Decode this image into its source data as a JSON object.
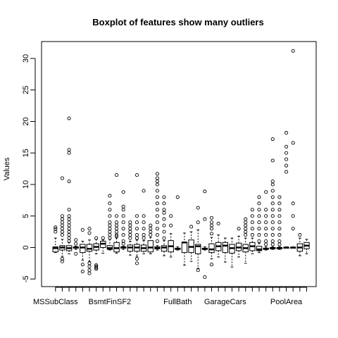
{
  "chart_data": {
    "type": "boxplot",
    "title": "Boxplot of features show many outliers",
    "xlabel": "",
    "ylabel": "Values",
    "ylim": [
      -6,
      33
    ],
    "yticks": [
      -5,
      0,
      5,
      10,
      15,
      20,
      25,
      30
    ],
    "shown_x_labels": [
      "MSSubClass",
      "BsmtFinSF2",
      "FullBath",
      "GarageCars",
      "PoolArea"
    ],
    "grid": false,
    "legend": "none",
    "series": [
      {
        "name": "MSSubClass",
        "values": {
          "min": -0.8,
          "q1": -0.7,
          "median": -0.1,
          "q3": 0.1,
          "max": 1.5,
          "outliers": [
            2.5,
            2.9,
            3.2
          ]
        }
      },
      {
        "values": {
          "min": -1.4,
          "q1": -0.4,
          "median": 0.0,
          "q3": 0.3,
          "max": 1.3,
          "outliers": [
            -1.8,
            -2.2,
            2.0,
            2.5,
            3.0,
            3.5,
            4.0,
            4.5,
            5.0,
            11.0
          ]
        }
      },
      {
        "values": {
          "min": -1.0,
          "q1": -0.5,
          "median": -0.1,
          "q3": 0.3,
          "max": 0.8,
          "outliers": [
            1.0,
            1.5,
            2.0,
            2.5,
            3.0,
            3.5,
            4.0,
            4.5,
            5.0,
            6.0,
            10.5,
            15.0,
            15.5,
            20.5
          ]
        }
      },
      {
        "values": {
          "min": -0.3,
          "q1": -0.1,
          "median": 0.0,
          "q3": 0.1,
          "max": 0.2,
          "outliers": [
            -1.0,
            0.6,
            1.2
          ]
        }
      },
      {
        "values": {
          "min": -2.0,
          "q1": -0.8,
          "median": 0.0,
          "q3": 0.5,
          "max": 1.0,
          "outliers": [
            -2.7,
            -3.8,
            2.8
          ]
        }
      },
      {
        "values": {
          "min": -2.2,
          "q1": -0.6,
          "median": -0.2,
          "q3": 0.5,
          "max": 1.2,
          "outliers": [
            -2.5,
            -3.0,
            -3.6,
            -4.1,
            2.3,
            3.0
          ]
        }
      },
      {
        "values": {
          "min": -1.0,
          "q1": -0.4,
          "median": 0.1,
          "q3": 0.6,
          "max": 1.3,
          "outliers": [
            -2.8,
            -3.0,
            -3.2,
            -3.4,
            1.5
          ]
        }
      },
      {
        "values": {
          "min": -0.9,
          "q1": 0.0,
          "median": 0.6,
          "q3": 1.0,
          "max": 1.2,
          "outliers": [
            1.5
          ]
        }
      },
      {
        "name": "BsmtFinSF2",
        "values": {
          "min": -0.4,
          "q1": -0.3,
          "median": -0.1,
          "q3": 0.3,
          "max": 1.3,
          "outliers": [
            1.5,
            2.0,
            2.5,
            3.0,
            3.5,
            4.0,
            5.0,
            6.0,
            7.0,
            8.2
          ]
        }
      },
      {
        "values": {
          "min": -0.9,
          "q1": -0.7,
          "median": -0.1,
          "q3": 0.8,
          "max": 1.5,
          "outliers": [
            1.8,
            2.0,
            2.5,
            3.0,
            3.5,
            4.0,
            5.0,
            11.5
          ]
        }
      },
      {
        "values": {
          "min": -0.3,
          "q1": -0.1,
          "median": 0.0,
          "q3": 0.1,
          "max": 0.2,
          "outliers": [
            0.6,
            1.0,
            2.0,
            3.0,
            4.0,
            5.0,
            6.0,
            6.5,
            8.8
          ]
        }
      },
      {
        "values": {
          "min": -1.2,
          "q1": -0.6,
          "median": 0.0,
          "q3": 0.4,
          "max": 1.0,
          "outliers": [
            1.5,
            2.0,
            2.5,
            3.0,
            3.5,
            4.0
          ]
        }
      },
      {
        "values": {
          "min": -1.4,
          "q1": -0.6,
          "median": 0.0,
          "q3": 0.5,
          "max": 1.2,
          "outliers": [
            -1.8,
            -2.5,
            1.5,
            2.0,
            3.0,
            4.0,
            5.0,
            11.5
          ]
        }
      },
      {
        "values": {
          "min": -1.0,
          "q1": -0.6,
          "median": -0.1,
          "q3": 0.4,
          "max": 1.1,
          "outliers": [
            1.5,
            2.0,
            3.0,
            4.0,
            5.0,
            9.0
          ]
        }
      },
      {
        "values": {
          "min": -1.0,
          "q1": -0.7,
          "median": 0.0,
          "q3": 1.1,
          "max": 1.6,
          "outliers": [
            2.0,
            2.5,
            3.0,
            3.5
          ]
        }
      },
      {
        "values": {
          "min": -0.4,
          "q1": -0.2,
          "median": -0.1,
          "q3": 0.1,
          "max": 0.3,
          "outliers": [
            1.0,
            2.0,
            3.0,
            4.0,
            5.0,
            6.0,
            7.0,
            8.0,
            9.0,
            10.0,
            10.5,
            11.0,
            11.7
          ]
        }
      },
      {
        "values": {
          "min": -1.3,
          "q1": -0.6,
          "median": 0.0,
          "q3": 0.3,
          "max": 1.1,
          "outliers": [
            1.5,
            2.5,
            3.5,
            4.5,
            5.5,
            6.0,
            7.0,
            8.0
          ]
        }
      },
      {
        "values": {
          "min": -1.5,
          "q1": -0.7,
          "median": 0.2,
          "q3": 1.1,
          "max": 2.2,
          "outliers": [
            3.5,
            5.0
          ]
        }
      },
      {
        "name": "FullBath",
        "values": {
          "min": -0.4,
          "q1": -0.3,
          "median": -0.2,
          "q3": -0.1,
          "max": 0.1,
          "outliers": [
            8.0
          ]
        }
      },
      {
        "values": {
          "min": -2.8,
          "q1": -0.8,
          "median": 0.8,
          "q3": 0.8,
          "max": 2.3,
          "outliers": []
        }
      },
      {
        "values": {
          "min": -2.2,
          "q1": -0.8,
          "median": 0.1,
          "q3": 1.2,
          "max": 2.5,
          "outliers": [
            3.3
          ]
        }
      },
      {
        "values": {
          "min": -3.3,
          "q1": -1.0,
          "median": 0.2,
          "q3": 0.5,
          "max": 2.8,
          "outliers": [
            -3.6,
            4.0,
            6.3
          ]
        }
      },
      {
        "values": {
          "min": -0.4,
          "q1": -0.3,
          "median": -0.2,
          "q3": -0.1,
          "max": 0.1,
          "outliers": [
            -4.7,
            4.5,
            8.9
          ]
        }
      },
      {
        "values": {
          "min": -1.8,
          "q1": -0.8,
          "median": -0.3,
          "q3": 0.6,
          "max": 1.6,
          "outliers": [
            -2.7,
            2.2,
            3.0,
            3.5,
            4.0,
            4.7
          ]
        }
      },
      {
        "values": {
          "min": -1.5,
          "q1": -0.5,
          "median": 0.2,
          "q3": 0.8,
          "max": 2.0,
          "outliers": [
            3.8
          ]
        }
      },
      {
        "name": "GarageCars",
        "values": {
          "min": -2.3,
          "q1": -0.8,
          "median": 0.3,
          "q3": 0.8,
          "max": 1.5,
          "outliers": []
        }
      },
      {
        "values": {
          "min": -3.1,
          "q1": -0.9,
          "median": -0.1,
          "q3": 0.5,
          "max": 1.5,
          "outliers": []
        }
      },
      {
        "values": {
          "min": -1.5,
          "q1": -0.5,
          "median": 0.0,
          "q3": 0.7,
          "max": 1.8,
          "outliers": [
            3.0
          ]
        }
      },
      {
        "values": {
          "min": -2.5,
          "q1": -0.7,
          "median": -0.1,
          "q3": 0.5,
          "max": 1.5,
          "outliers": [
            2.0,
            2.5,
            3.0,
            3.5,
            4.0,
            4.5
          ]
        }
      },
      {
        "values": {
          "min": -1.0,
          "q1": -0.5,
          "median": 0.2,
          "q3": 0.8,
          "max": 1.5,
          "outliers": [
            2.0,
            3.0,
            4.0,
            5.0,
            6.0
          ]
        }
      },
      {
        "values": {
          "min": -0.8,
          "q1": -0.5,
          "median": -0.3,
          "q3": 0.2,
          "max": 0.7,
          "outliers": [
            1.0,
            2.0,
            3.0,
            4.0,
            5.0,
            6.0,
            7.0,
            8.0
          ]
        }
      },
      {
        "values": {
          "min": -0.4,
          "q1": -0.3,
          "median": -0.2,
          "q3": -0.1,
          "max": 0.1,
          "outliers": [
            0.5,
            1.0,
            2.0,
            3.0,
            4.0,
            5.0,
            6.0,
            8.8
          ]
        }
      },
      {
        "values": {
          "min": -0.3,
          "q1": -0.2,
          "median": -0.1,
          "q3": 0.0,
          "max": 0.1,
          "outliers": [
            0.5,
            1.0,
            2.0,
            3.0,
            4.0,
            5.0,
            6.0,
            7.0,
            8.0,
            9.0,
            10.0,
            10.5,
            13.8,
            17.2
          ]
        }
      },
      {
        "values": {
          "min": -0.3,
          "q1": -0.2,
          "median": -0.1,
          "q3": 0.0,
          "max": 0.1,
          "outliers": [
            0.5,
            1.0,
            2.0,
            3.0,
            4.0,
            5.0,
            6.0,
            7.0,
            8.0
          ]
        }
      },
      {
        "name": "PoolArea",
        "values": {
          "min": -0.1,
          "q1": -0.1,
          "median": 0.0,
          "q3": 0.0,
          "max": 0.1,
          "outliers": [
            12.0,
            13.0,
            14.0,
            15.0,
            16.0,
            18.2
          ]
        }
      },
      {
        "values": {
          "min": -0.1,
          "q1": -0.1,
          "median": 0.0,
          "q3": 0.0,
          "max": 0.1,
          "outliers": [
            3.0,
            5.0,
            7.0,
            16.6,
            31.2
          ]
        }
      },
      {
        "values": {
          "min": -1.3,
          "q1": -0.6,
          "median": 0.0,
          "q3": 0.6,
          "max": 1.5,
          "outliers": [
            2.0
          ]
        }
      },
      {
        "values": {
          "min": -1.0,
          "q1": -0.2,
          "median": 0.3,
          "q3": 0.8,
          "max": 1.3,
          "outliers": []
        }
      }
    ]
  }
}
